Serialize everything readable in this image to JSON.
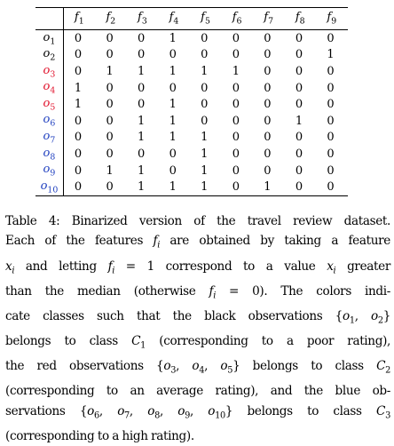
{
  "table": {
    "columns": [
      "f1",
      "f2",
      "f3",
      "f4",
      "f5",
      "f6",
      "f7",
      "f8",
      "f9"
    ],
    "colors": {
      "black": "#000000",
      "red": "#e0102a",
      "blue": "#1f3fbf"
    },
    "rows": [
      {
        "label": "o1",
        "class": "black",
        "values": [
          "0",
          "0",
          "0",
          "1",
          "0",
          "0",
          "0",
          "0",
          "0"
        ]
      },
      {
        "label": "o2",
        "class": "black",
        "values": [
          "0",
          "0",
          "0",
          "0",
          "0",
          "0",
          "0",
          "0",
          "1"
        ]
      },
      {
        "label": "o3",
        "class": "red",
        "values": [
          "0",
          "1",
          "1",
          "1",
          "1",
          "1",
          "0",
          "0",
          "0"
        ]
      },
      {
        "label": "o4",
        "class": "red",
        "values": [
          "1",
          "0",
          "0",
          "0",
          "0",
          "0",
          "0",
          "0",
          "0"
        ]
      },
      {
        "label": "o5",
        "class": "red",
        "values": [
          "1",
          "0",
          "0",
          "1",
          "0",
          "0",
          "0",
          "0",
          "0"
        ]
      },
      {
        "label": "o6",
        "class": "blue",
        "values": [
          "0",
          "0",
          "1",
          "1",
          "0",
          "0",
          "0",
          "1",
          "0"
        ]
      },
      {
        "label": "o7",
        "class": "blue",
        "values": [
          "0",
          "0",
          "1",
          "1",
          "1",
          "0",
          "0",
          "0",
          "0"
        ]
      },
      {
        "label": "o8",
        "class": "blue",
        "values": [
          "0",
          "0",
          "0",
          "0",
          "1",
          "0",
          "0",
          "0",
          "0"
        ]
      },
      {
        "label": "o9",
        "class": "blue",
        "values": [
          "0",
          "1",
          "1",
          "0",
          "1",
          "0",
          "0",
          "0",
          "0"
        ]
      },
      {
        "label": "o10",
        "class": "blue",
        "values": [
          "0",
          "0",
          "1",
          "1",
          "1",
          "0",
          "1",
          "0",
          "0"
        ]
      }
    ]
  },
  "caption": {
    "lines": [
      "Table 4:  Binarized version of the travel review dataset.",
      "Each of the features fi are obtained by taking a feature",
      "xi and letting fi = 1 correspond to a value xi greater",
      "than the median (otherwise fi = 0).  The colors indi-",
      "cate classes such that the black observations {o1, o2}",
      "belongs to class C1 (corresponding to a poor rating),",
      "the red observations {o3, o4, o5} belongs to class C2",
      "(corresponding to an average rating), and the blue ob-",
      "servations {o6, o7, o8, o9, o10} belongs to class C3",
      "(corresponding to a high rating)."
    ]
  }
}
